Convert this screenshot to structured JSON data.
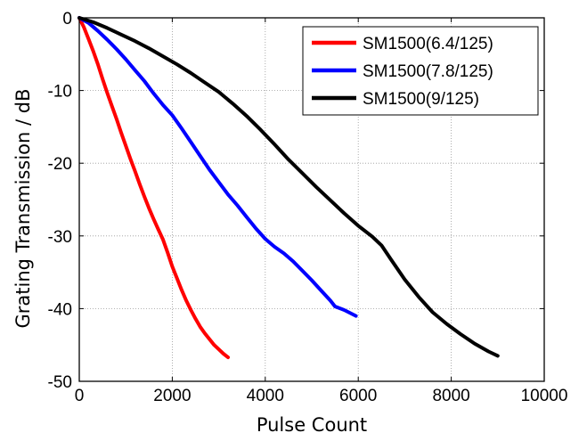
{
  "chart_data": {
    "type": "line",
    "title": "",
    "xlabel": "Pulse Count",
    "ylabel": "Grating Transmission / dB",
    "xlim": [
      0,
      10000
    ],
    "ylim": [
      -50,
      0
    ],
    "xticks": [
      0,
      2000,
      4000,
      6000,
      8000,
      10000
    ],
    "yticks": [
      0,
      -10,
      -20,
      -30,
      -40,
      -50
    ],
    "grid": true,
    "legend_position": "top-right",
    "series": [
      {
        "name": "SM1500(6.4/125)",
        "color": "#ff0000",
        "x": [
          0,
          100,
          200,
          300,
          400,
          500,
          600,
          700,
          800,
          900,
          1000,
          1100,
          1200,
          1300,
          1400,
          1500,
          1600,
          1700,
          1800,
          1900,
          2000,
          2100,
          2200,
          2300,
          2400,
          2500,
          2600,
          2700,
          2800,
          2900,
          3000,
          3100,
          3200
        ],
        "y": [
          0,
          -1.3,
          -2.9,
          -4.6,
          -6.4,
          -8.4,
          -10.3,
          -12.1,
          -13.9,
          -15.8,
          -17.6,
          -19.4,
          -21.1,
          -22.9,
          -24.6,
          -26.2,
          -27.7,
          -29.1,
          -30.5,
          -32.3,
          -34.2,
          -35.8,
          -37.4,
          -38.9,
          -40.2,
          -41.4,
          -42.5,
          -43.4,
          -44.2,
          -45.0,
          -45.6,
          -46.2,
          -46.7
        ]
      },
      {
        "name": "SM1500(7.8/125)",
        "color": "#0000ff",
        "x": [
          0,
          200,
          400,
          600,
          800,
          1000,
          1200,
          1400,
          1600,
          1800,
          2000,
          2200,
          2400,
          2600,
          2800,
          3000,
          3200,
          3400,
          3600,
          3800,
          4000,
          4200,
          4400,
          4600,
          4800,
          5000,
          5200,
          5400,
          5500,
          5700,
          5950
        ],
        "y": [
          0,
          -0.7,
          -1.8,
          -3.0,
          -4.3,
          -5.7,
          -7.2,
          -8.7,
          -10.4,
          -12.0,
          -13.4,
          -15.2,
          -17.1,
          -19.0,
          -20.9,
          -22.6,
          -24.3,
          -25.8,
          -27.4,
          -29.0,
          -30.4,
          -31.5,
          -32.4,
          -33.5,
          -34.8,
          -36.1,
          -37.5,
          -38.9,
          -39.7,
          -40.2,
          -41.0
        ]
      },
      {
        "name": "SM1500(9/125)",
        "color": "#000000",
        "x": [
          0,
          300,
          600,
          900,
          1200,
          1500,
          1800,
          2100,
          2400,
          2700,
          3000,
          3300,
          3600,
          3900,
          4200,
          4500,
          4800,
          5100,
          5400,
          5700,
          6000,
          6300,
          6500,
          6700,
          7000,
          7300,
          7600,
          7900,
          8200,
          8500,
          8800,
          9000
        ],
        "y": [
          0,
          -0.6,
          -1.4,
          -2.3,
          -3.2,
          -4.2,
          -5.3,
          -6.4,
          -7.6,
          -8.9,
          -10.2,
          -11.8,
          -13.5,
          -15.4,
          -17.4,
          -19.5,
          -21.4,
          -23.3,
          -25.1,
          -26.9,
          -28.6,
          -30.1,
          -31.3,
          -33.2,
          -36.0,
          -38.4,
          -40.5,
          -42.1,
          -43.5,
          -44.8,
          -45.9,
          -46.5
        ]
      }
    ]
  }
}
